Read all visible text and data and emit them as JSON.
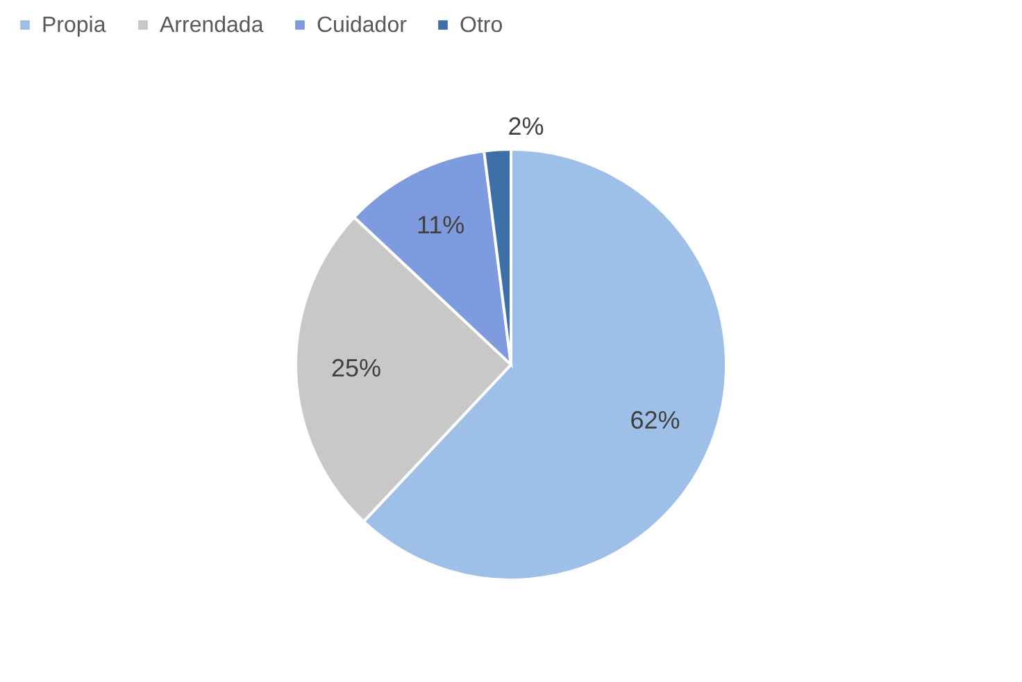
{
  "chart_data": {
    "type": "pie",
    "categories": [
      "Propia",
      "Arrendada",
      "Cuidador",
      "Otro"
    ],
    "values": [
      62,
      25,
      11,
      2
    ],
    "colors": [
      "#9dbfe8",
      "#c8c8c8",
      "#7f9be0",
      "#3f6fa8"
    ],
    "value_labels": [
      "62%",
      "25%",
      "11%",
      "2%"
    ],
    "legend": "top"
  }
}
